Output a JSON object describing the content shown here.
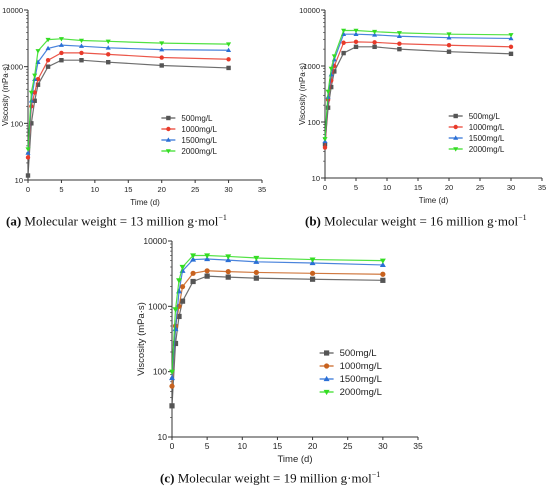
{
  "chart_data": [
    {
      "type": "line",
      "xlabel": "Time (d)",
      "ylabel": "Viscosity (mPa·s)",
      "xlim": [
        0,
        35
      ],
      "ylim": [
        10,
        10000
      ],
      "yscale": "log",
      "xticks": [
        0,
        5,
        10,
        15,
        20,
        25,
        30,
        35
      ],
      "yticks": [
        10,
        100,
        1000,
        10000
      ],
      "legend_position": "bottom-right",
      "grid": false,
      "caption": {
        "letter": "(a)",
        "text": " Molecular weight = 13 million g·mol",
        "sup": "−1"
      },
      "series": [
        {
          "name": "500mg/L",
          "color": "#555555",
          "marker": "square",
          "x": [
            0,
            0.5,
            1,
            1.5,
            3,
            5,
            8,
            12,
            20,
            30
          ],
          "y": [
            12,
            100,
            250,
            480,
            1000,
            1300,
            1300,
            1200,
            1050,
            950
          ]
        },
        {
          "name": "1000mg/L",
          "color": "#e83a2a",
          "marker": "circle",
          "x": [
            0,
            0.5,
            1,
            1.5,
            3,
            5,
            8,
            12,
            20,
            30
          ],
          "y": [
            25,
            200,
            350,
            600,
            1300,
            1750,
            1750,
            1650,
            1450,
            1350
          ]
        },
        {
          "name": "1500mg/L",
          "color": "#2a6fd6",
          "marker": "triangle-up",
          "x": [
            0,
            0.5,
            1,
            1.5,
            3,
            5,
            8,
            12,
            20,
            30
          ],
          "y": [
            30,
            250,
            600,
            1200,
            2100,
            2400,
            2300,
            2150,
            2000,
            1950
          ]
        },
        {
          "name": "2000mg/L",
          "color": "#33dd22",
          "marker": "triangle-down",
          "x": [
            0,
            0.5,
            1,
            1.5,
            3,
            5,
            8,
            12,
            20,
            30
          ],
          "y": [
            35,
            350,
            700,
            1900,
            3000,
            3100,
            2900,
            2800,
            2600,
            2500
          ]
        }
      ]
    },
    {
      "type": "line",
      "xlabel": "Time (d)",
      "ylabel": "Viscosity (mPa·s)",
      "xlim": [
        0,
        35
      ],
      "ylim": [
        10,
        10000
      ],
      "yscale": "log",
      "xticks": [
        0,
        5,
        10,
        15,
        20,
        25,
        30,
        35
      ],
      "yticks": [
        10,
        100,
        1000,
        10000
      ],
      "legend_position": "bottom-right",
      "grid": false,
      "caption": {
        "letter": "(b)",
        "text": " Molecular weight = 16 million g·mol",
        "sup": "−1"
      },
      "series": [
        {
          "name": "500mg/L",
          "color": "#555555",
          "marker": "square",
          "x": [
            0,
            0.5,
            1,
            1.5,
            3,
            5,
            8,
            12,
            20,
            30
          ],
          "y": [
            40,
            180,
            420,
            800,
            1700,
            2200,
            2200,
            2000,
            1800,
            1650
          ]
        },
        {
          "name": "1000mg/L",
          "color": "#e83a2a",
          "marker": "circle",
          "x": [
            0,
            0.5,
            1,
            1.5,
            3,
            5,
            8,
            12,
            20,
            30
          ],
          "y": [
            35,
            250,
            550,
            1000,
            2600,
            2700,
            2650,
            2500,
            2350,
            2200
          ]
        },
        {
          "name": "1500mg/L",
          "color": "#2a6fd6",
          "marker": "triangle-up",
          "x": [
            0,
            0.5,
            1,
            1.5,
            3,
            5,
            8,
            12,
            20,
            30
          ],
          "y": [
            45,
            280,
            700,
            1300,
            3700,
            3700,
            3600,
            3400,
            3200,
            3100
          ]
        },
        {
          "name": "2000mg/L",
          "color": "#33dd22",
          "marker": "triangle-down",
          "x": [
            0,
            0.5,
            1,
            1.5,
            3,
            5,
            8,
            12,
            20,
            30
          ],
          "y": [
            50,
            350,
            900,
            1500,
            4300,
            4300,
            4100,
            3900,
            3700,
            3600
          ]
        }
      ]
    },
    {
      "type": "line",
      "xlabel": "Time (d)",
      "ylabel": "Viscosity (mPa·s)",
      "xlim": [
        0,
        35
      ],
      "ylim": [
        10,
        10000
      ],
      "yscale": "log",
      "xticks": [
        0,
        5,
        10,
        15,
        20,
        25,
        30,
        35
      ],
      "yticks": [
        10,
        100,
        1000,
        10000
      ],
      "legend_position": "bottom-right",
      "grid": false,
      "caption": {
        "letter": "(c)",
        "text": " Molecular weight = 19 million g·mol",
        "sup": "−1"
      },
      "series": [
        {
          "name": "500mg/L",
          "color": "#555555",
          "marker": "square",
          "x": [
            0,
            0.5,
            1,
            1.5,
            3,
            5,
            8,
            12,
            20,
            30
          ],
          "y": [
            30,
            270,
            700,
            1200,
            2400,
            2900,
            2800,
            2700,
            2600,
            2500
          ]
        },
        {
          "name": "1000mg/L",
          "color": "#c8621e",
          "marker": "circle",
          "x": [
            0,
            0.5,
            1,
            1.5,
            3,
            5,
            8,
            12,
            20,
            30
          ],
          "y": [
            60,
            500,
            1000,
            2000,
            3200,
            3500,
            3400,
            3300,
            3200,
            3100
          ]
        },
        {
          "name": "1500mg/L",
          "color": "#2a6fd6",
          "marker": "triangle-up",
          "x": [
            0,
            0.5,
            1,
            1.5,
            3,
            5,
            8,
            12,
            20,
            30
          ],
          "y": [
            80,
            450,
            1700,
            3500,
            5200,
            5300,
            5100,
            4800,
            4600,
            4300
          ]
        },
        {
          "name": "2000mg/L",
          "color": "#33dd22",
          "marker": "triangle-down",
          "x": [
            0,
            0.5,
            1,
            1.5,
            3,
            5,
            8,
            12,
            20,
            30
          ],
          "y": [
            100,
            900,
            2500,
            4000,
            6000,
            6000,
            5800,
            5500,
            5200,
            5000
          ]
        }
      ]
    }
  ]
}
